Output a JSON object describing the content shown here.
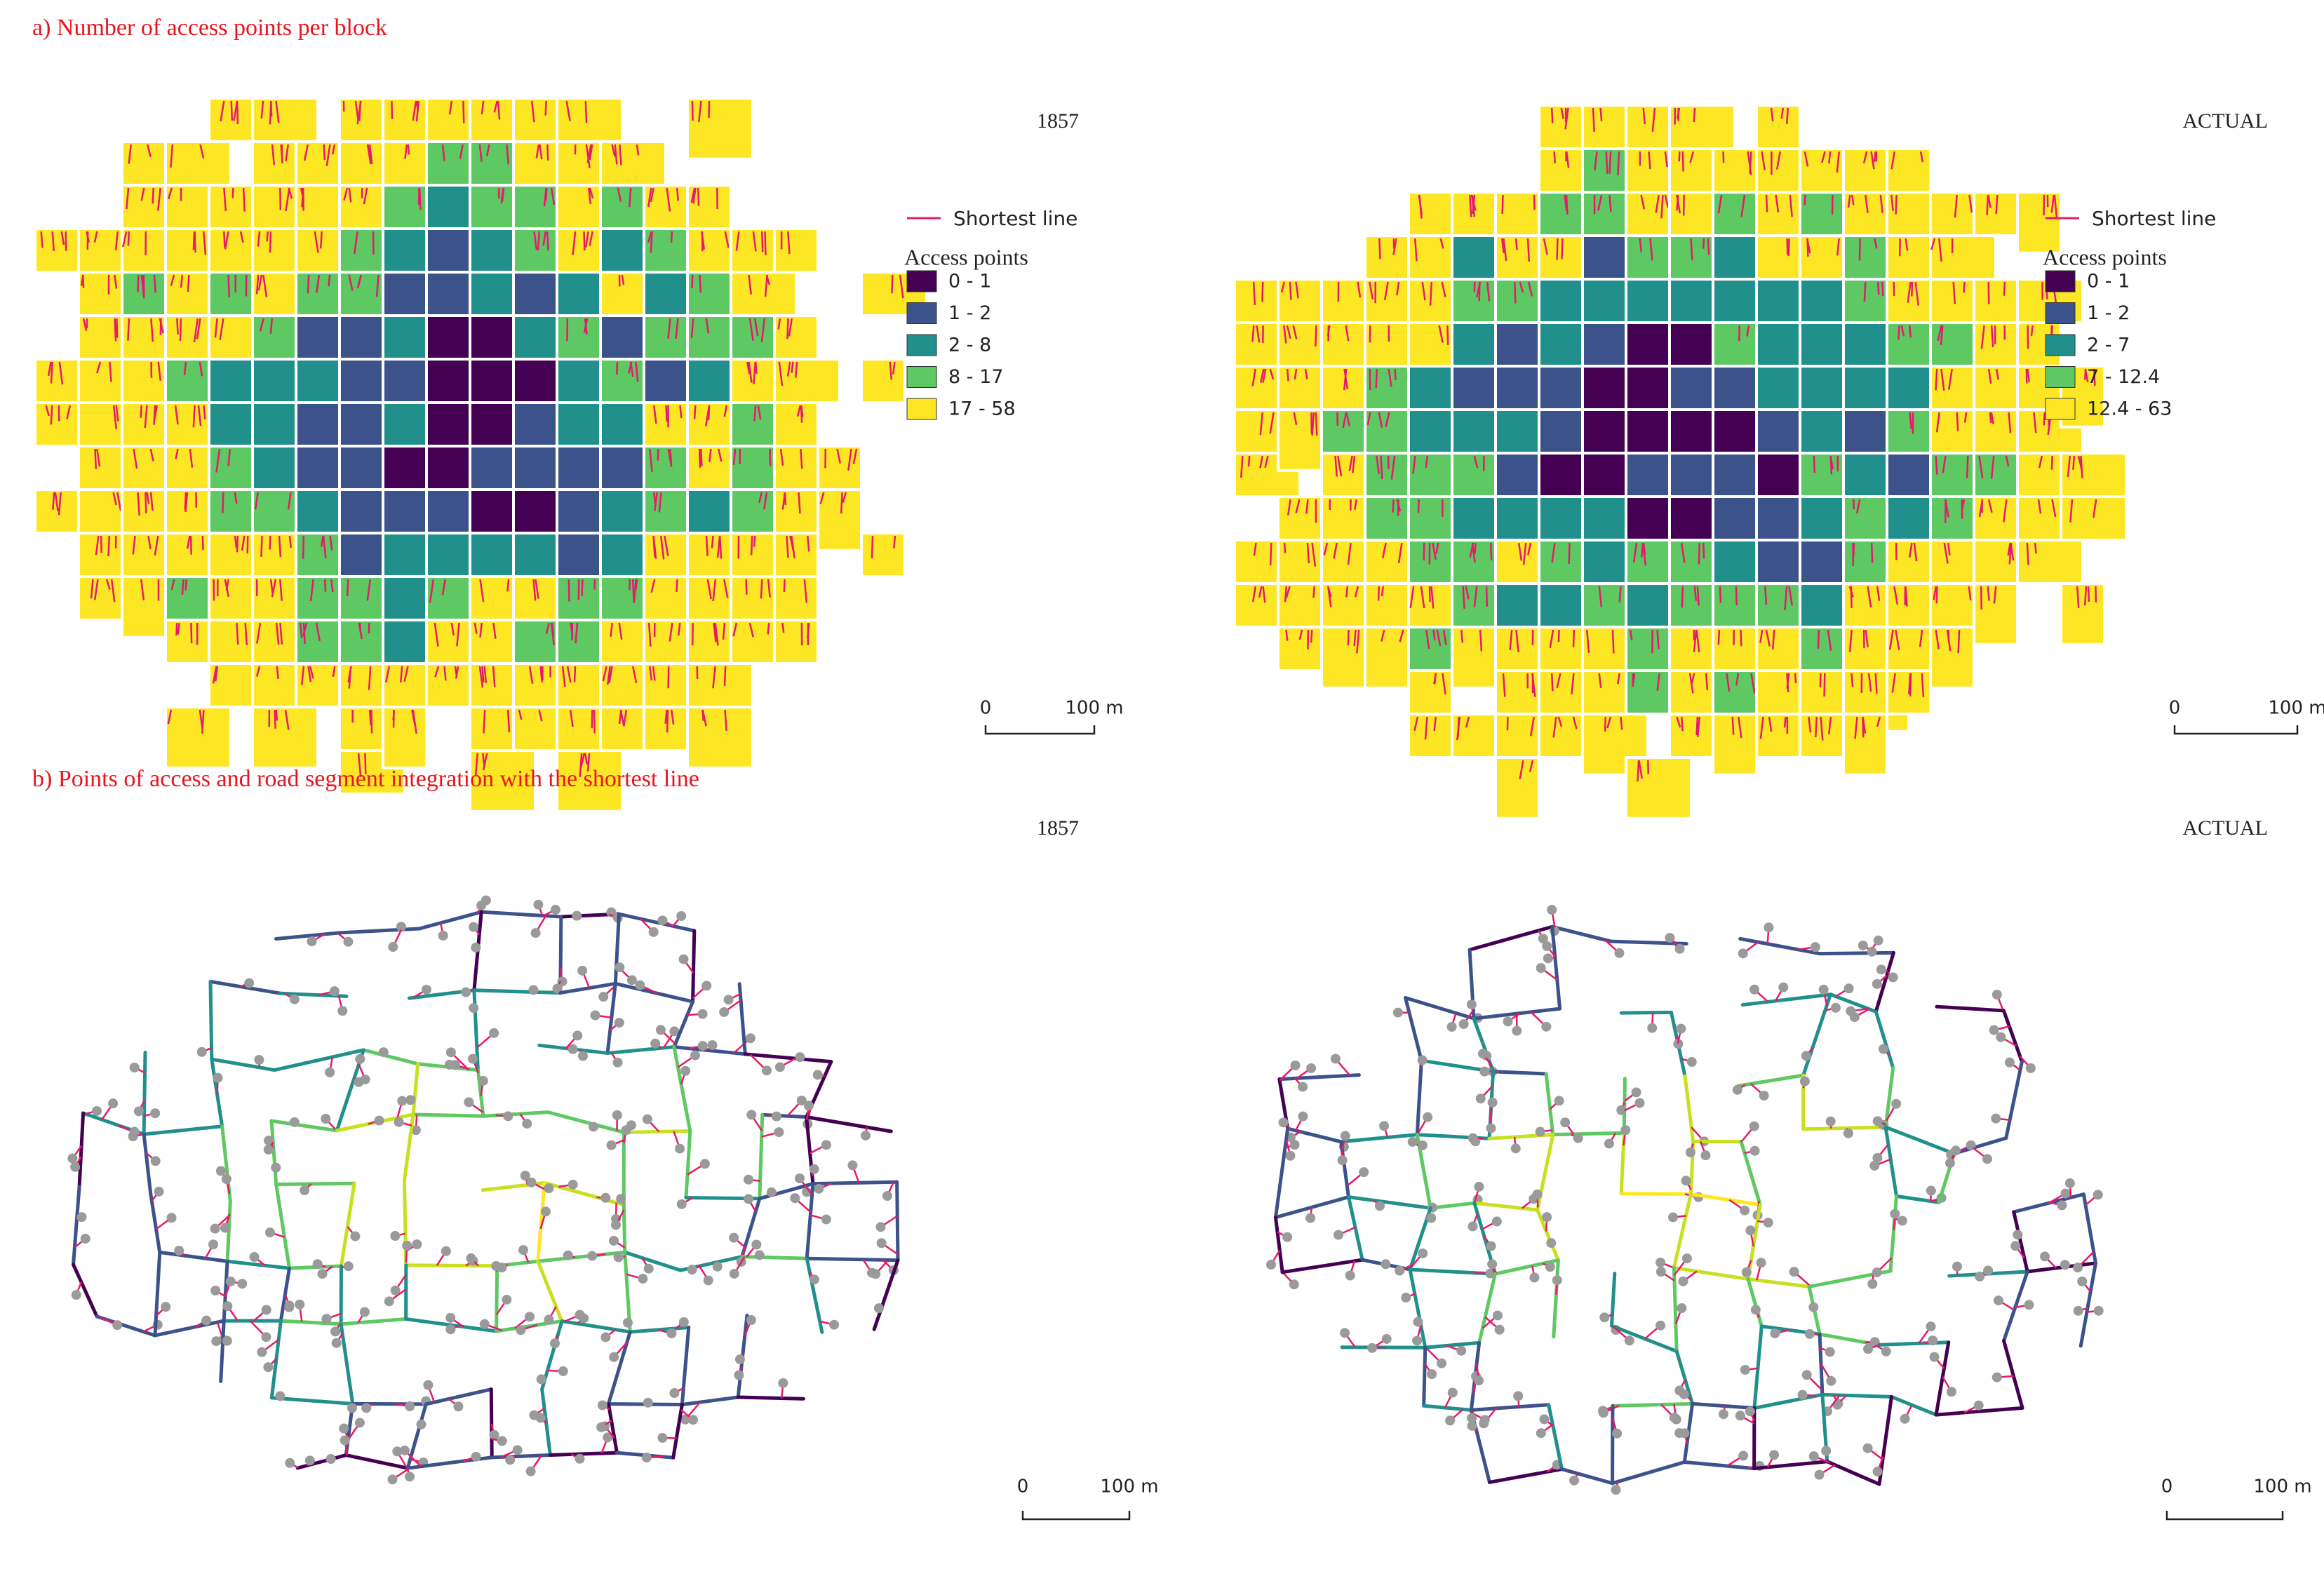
{
  "panel_a": {
    "title": "a) Number of access points per block",
    "maps": [
      {
        "label": "1857",
        "legend": {
          "line": "Shortest line",
          "title": "Access points",
          "classes": [
            "0 - 1",
            "1 - 2",
            "2 - 8",
            "8 - 17",
            "17 - 58"
          ],
          "colors": [
            "#440154",
            "#3b528b",
            "#21908c",
            "#5ec962",
            "#fde725"
          ]
        },
        "scale": {
          "start": "0",
          "end": "100 m"
        }
      },
      {
        "label": "ACTUAL",
        "legend": {
          "line": "Shortest line",
          "title": "Access points",
          "classes": [
            "0 - 1",
            "1 - 2",
            "2 - 7",
            "7 - 12.4",
            "12.4 - 63"
          ],
          "colors": [
            "#440154",
            "#3b528b",
            "#21908c",
            "#5ec962",
            "#fde725"
          ]
        },
        "scale": {
          "start": "0",
          "end": "100 m"
        }
      }
    ]
  },
  "panel_b": {
    "title": "b) Points of access and road segment integration with the shortest line",
    "maps": [
      {
        "label": "1857",
        "scale": {
          "start": "0",
          "end": "100 m"
        }
      },
      {
        "label": "ACTUAL",
        "scale": {
          "start": "0",
          "end": "100 m"
        }
      }
    ]
  }
}
